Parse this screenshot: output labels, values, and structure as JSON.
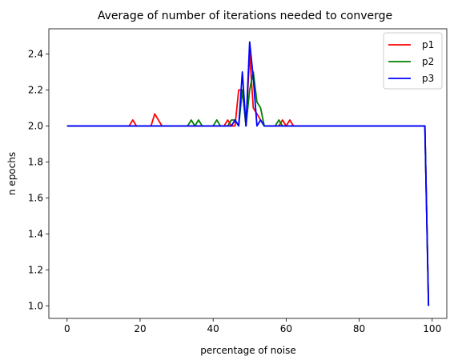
{
  "chart_data": {
    "type": "line",
    "title": "Average of number of iterations needed to converge",
    "xlabel": "percentage of noise",
    "ylabel": "n epochs",
    "xlim": [
      -5,
      104
    ],
    "ylim": [
      0.93,
      2.54
    ],
    "xticks": [
      0,
      20,
      40,
      60,
      80,
      100
    ],
    "xtick_labels": [
      "0",
      "20",
      "40",
      "60",
      "80",
      "100"
    ],
    "yticks": [
      1.0,
      1.2,
      1.4,
      1.6,
      1.8,
      2.0,
      2.2,
      2.4
    ],
    "ytick_labels": [
      "1.0",
      "1.2",
      "1.4",
      "1.6",
      "1.8",
      "2.0",
      "2.2",
      "2.4"
    ],
    "grid": false,
    "legend_position": "top-right",
    "x": [
      0,
      1,
      2,
      3,
      4,
      5,
      6,
      7,
      8,
      9,
      10,
      11,
      12,
      13,
      14,
      15,
      16,
      17,
      18,
      19,
      20,
      21,
      22,
      23,
      24,
      25,
      26,
      27,
      28,
      29,
      30,
      31,
      32,
      33,
      34,
      35,
      36,
      37,
      38,
      39,
      40,
      41,
      42,
      43,
      44,
      45,
      46,
      47,
      48,
      49,
      50,
      51,
      52,
      53,
      54,
      55,
      56,
      57,
      58,
      59,
      60,
      61,
      62,
      63,
      64,
      65,
      66,
      67,
      68,
      69,
      70,
      71,
      72,
      73,
      74,
      75,
      76,
      77,
      78,
      79,
      80,
      81,
      82,
      83,
      84,
      85,
      86,
      87,
      88,
      89,
      90,
      91,
      92,
      93,
      94,
      95,
      96,
      97,
      98,
      99
    ],
    "series": [
      {
        "name": "p1",
        "color": "#ff0000",
        "values": [
          2.0,
          2.0,
          2.0,
          2.0,
          2.0,
          2.0,
          2.0,
          2.0,
          2.0,
          2.0,
          2.0,
          2.0,
          2.0,
          2.0,
          2.0,
          2.0,
          2.0,
          2.0,
          2.033,
          2.0,
          2.0,
          2.0,
          2.0,
          2.0,
          2.067,
          2.033,
          2.0,
          2.0,
          2.0,
          2.0,
          2.0,
          2.0,
          2.0,
          2.0,
          2.0,
          2.0,
          2.0,
          2.0,
          2.0,
          2.0,
          2.0,
          2.0,
          2.0,
          2.0,
          2.033,
          2.0,
          2.0,
          2.2,
          2.2,
          2.0,
          2.4,
          2.1,
          2.067,
          2.033,
          2.0,
          2.0,
          2.0,
          2.0,
          2.0,
          2.033,
          2.0,
          2.033,
          2.0,
          2.0,
          2.0,
          2.0,
          2.0,
          2.0,
          2.0,
          2.0,
          2.0,
          2.0,
          2.0,
          2.0,
          2.0,
          2.0,
          2.0,
          2.0,
          2.0,
          2.0,
          2.0,
          2.0,
          2.0,
          2.0,
          2.0,
          2.0,
          2.0,
          2.0,
          2.0,
          2.0,
          2.0,
          2.0,
          2.0,
          2.0,
          2.0,
          2.0,
          2.0,
          2.0,
          2.0,
          1.0
        ]
      },
      {
        "name": "p2",
        "color": "#008000",
        "values": [
          2.0,
          2.0,
          2.0,
          2.0,
          2.0,
          2.0,
          2.0,
          2.0,
          2.0,
          2.0,
          2.0,
          2.0,
          2.0,
          2.0,
          2.0,
          2.0,
          2.0,
          2.0,
          2.0,
          2.0,
          2.0,
          2.0,
          2.0,
          2.0,
          2.0,
          2.0,
          2.0,
          2.0,
          2.0,
          2.0,
          2.0,
          2.0,
          2.0,
          2.0,
          2.033,
          2.0,
          2.033,
          2.0,
          2.0,
          2.0,
          2.0,
          2.033,
          2.0,
          2.0,
          2.0,
          2.033,
          2.033,
          2.0,
          2.2,
          2.0,
          2.2,
          2.3,
          2.133,
          2.1,
          2.0,
          2.0,
          2.0,
          2.0,
          2.033,
          2.0,
          2.0,
          2.0,
          2.0,
          2.0,
          2.0,
          2.0,
          2.0,
          2.0,
          2.0,
          2.0,
          2.0,
          2.0,
          2.0,
          2.0,
          2.0,
          2.0,
          2.0,
          2.0,
          2.0,
          2.0,
          2.0,
          2.0,
          2.0,
          2.0,
          2.0,
          2.0,
          2.0,
          2.0,
          2.0,
          2.0,
          2.0,
          2.0,
          2.0,
          2.0,
          2.0,
          2.0,
          2.0,
          2.0,
          2.0,
          1.0
        ]
      },
      {
        "name": "p3",
        "color": "#0000ff",
        "values": [
          2.0,
          2.0,
          2.0,
          2.0,
          2.0,
          2.0,
          2.0,
          2.0,
          2.0,
          2.0,
          2.0,
          2.0,
          2.0,
          2.0,
          2.0,
          2.0,
          2.0,
          2.0,
          2.0,
          2.0,
          2.0,
          2.0,
          2.0,
          2.0,
          2.0,
          2.0,
          2.0,
          2.0,
          2.0,
          2.0,
          2.0,
          2.0,
          2.0,
          2.0,
          2.0,
          2.0,
          2.0,
          2.0,
          2.0,
          2.0,
          2.0,
          2.0,
          2.0,
          2.0,
          2.0,
          2.0,
          2.033,
          2.0,
          2.3,
          2.0,
          2.467,
          2.267,
          2.0,
          2.033,
          2.0,
          2.0,
          2.0,
          2.0,
          2.0,
          2.0,
          2.0,
          2.0,
          2.0,
          2.0,
          2.0,
          2.0,
          2.0,
          2.0,
          2.0,
          2.0,
          2.0,
          2.0,
          2.0,
          2.0,
          2.0,
          2.0,
          2.0,
          2.0,
          2.0,
          2.0,
          2.0,
          2.0,
          2.0,
          2.0,
          2.0,
          2.0,
          2.0,
          2.0,
          2.0,
          2.0,
          2.0,
          2.0,
          2.0,
          2.0,
          2.0,
          2.0,
          2.0,
          2.0,
          2.0,
          1.0
        ]
      }
    ]
  }
}
